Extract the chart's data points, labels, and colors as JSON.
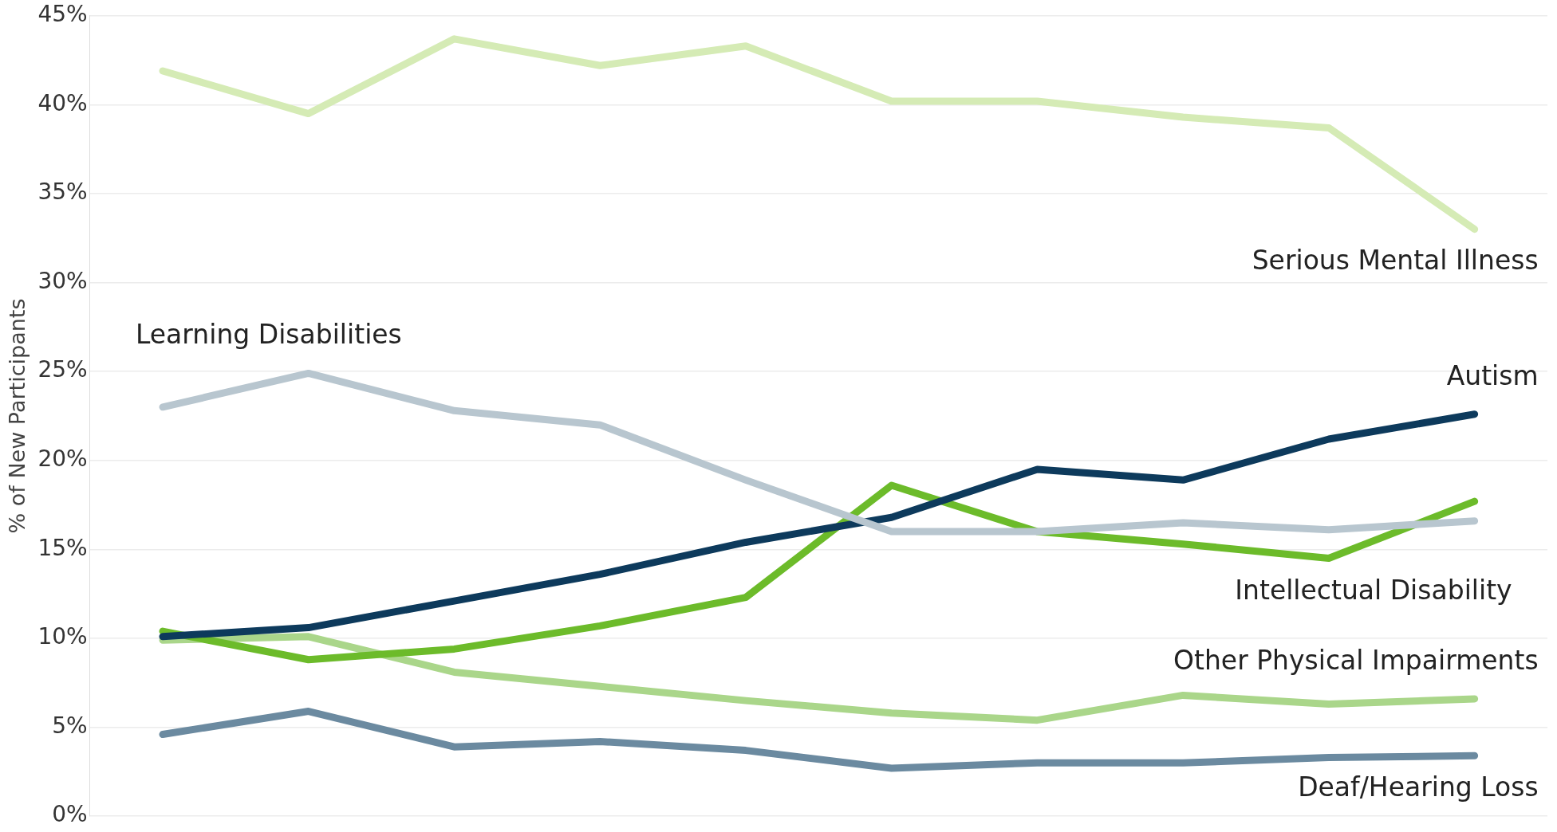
{
  "chart_data": {
    "type": "line",
    "ylabel": "% of New Participants",
    "categories": [
      null,
      null,
      null,
      null,
      null,
      null,
      null,
      null,
      null,
      null
    ],
    "series": [
      {
        "name": "Serious Mental Illness",
        "color": "#d5ebb5",
        "values": [
          41.9,
          39.5,
          43.7,
          42.2,
          43.3,
          40.2,
          40.2,
          39.3,
          38.7,
          33.0
        ]
      },
      {
        "name": "Learning Disabilities",
        "color": "#b8c6cf",
        "values": [
          23.0,
          24.9,
          22.8,
          22.0,
          18.9,
          16.0,
          16.0,
          16.5,
          16.1,
          16.6
        ]
      },
      {
        "name": "Autism",
        "color": "#0d3a5c",
        "values": [
          10.1,
          10.6,
          12.1,
          13.6,
          15.4,
          16.8,
          19.5,
          18.9,
          21.2,
          22.6
        ]
      },
      {
        "name": "Intellectual Disability",
        "color": "#6cbb2a",
        "values": [
          10.4,
          8.8,
          9.4,
          10.7,
          12.3,
          18.6,
          16.0,
          15.3,
          14.5,
          17.7
        ]
      },
      {
        "name": "Other Physical Impairments",
        "color": "#aad68a",
        "values": [
          9.9,
          10.1,
          8.1,
          7.3,
          6.5,
          5.8,
          5.4,
          6.8,
          6.3,
          6.6
        ]
      },
      {
        "name": "Deaf/Hearing Loss",
        "color": "#6b8aa0",
        "values": [
          4.6,
          5.9,
          3.9,
          4.2,
          3.7,
          2.7,
          3.0,
          3.0,
          3.3,
          3.4
        ]
      }
    ],
    "ylim": [
      0,
      45
    ],
    "yticks": [
      {
        "value": 0,
        "label": "0%"
      },
      {
        "value": 5,
        "label": "5%"
      },
      {
        "value": 10,
        "label": "10%"
      },
      {
        "value": 15,
        "label": "15%"
      },
      {
        "value": 20,
        "label": "20%"
      },
      {
        "value": 25,
        "label": "25%"
      },
      {
        "value": 30,
        "label": "30%"
      },
      {
        "value": 35,
        "label": "35%"
      },
      {
        "value": 40,
        "label": "40%"
      },
      {
        "value": 45,
        "label": "45%"
      }
    ],
    "grid": "y",
    "legend": false,
    "tick_labels": "y",
    "marker": "none",
    "line_style": "solid"
  }
}
